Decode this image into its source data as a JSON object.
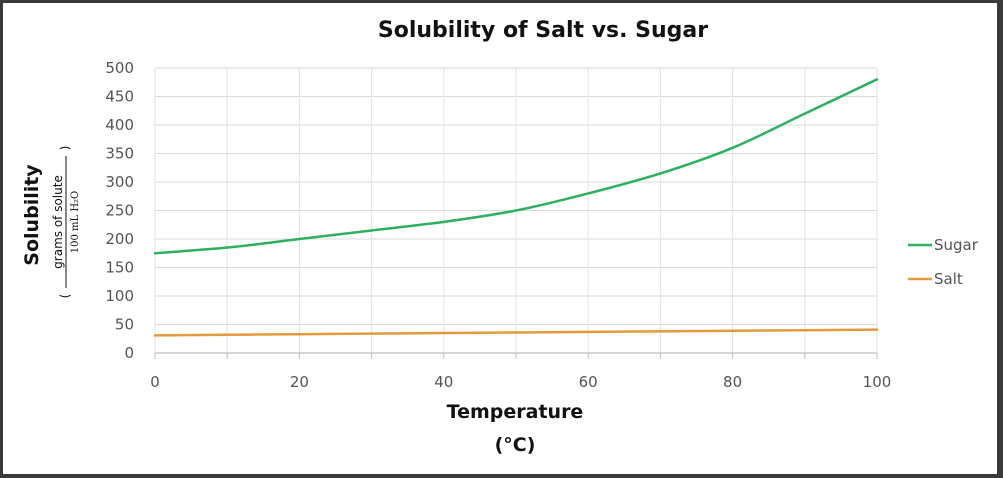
{
  "chart_data": {
    "type": "line",
    "title": "Solubility of Salt vs. Sugar",
    "xlabel_line1": "Temperature",
    "xlabel_line2": "(°C)",
    "ylabel": "Solubility",
    "ylabel_unit_numerator": "grams of solute",
    "ylabel_unit_denominator": "100 mL H₂O",
    "xlim": [
      0,
      100
    ],
    "ylim": [
      0,
      500
    ],
    "x_ticks": [
      0,
      20,
      40,
      60,
      80,
      100
    ],
    "y_ticks": [
      0,
      50,
      100,
      150,
      200,
      250,
      300,
      350,
      400,
      450,
      500
    ],
    "grid": true,
    "legend_position": "right",
    "x": [
      0,
      10,
      20,
      30,
      40,
      50,
      60,
      70,
      80,
      90,
      100
    ],
    "series": [
      {
        "name": "Sugar",
        "color": "#2eb060",
        "values": [
          175,
          185,
          200,
          215,
          230,
          250,
          280,
          315,
          360,
          420,
          480
        ]
      },
      {
        "name": "Salt",
        "color": "#e39a3b",
        "values": [
          31,
          32,
          33,
          34,
          35,
          36,
          37,
          38,
          39,
          40,
          41
        ]
      }
    ]
  }
}
